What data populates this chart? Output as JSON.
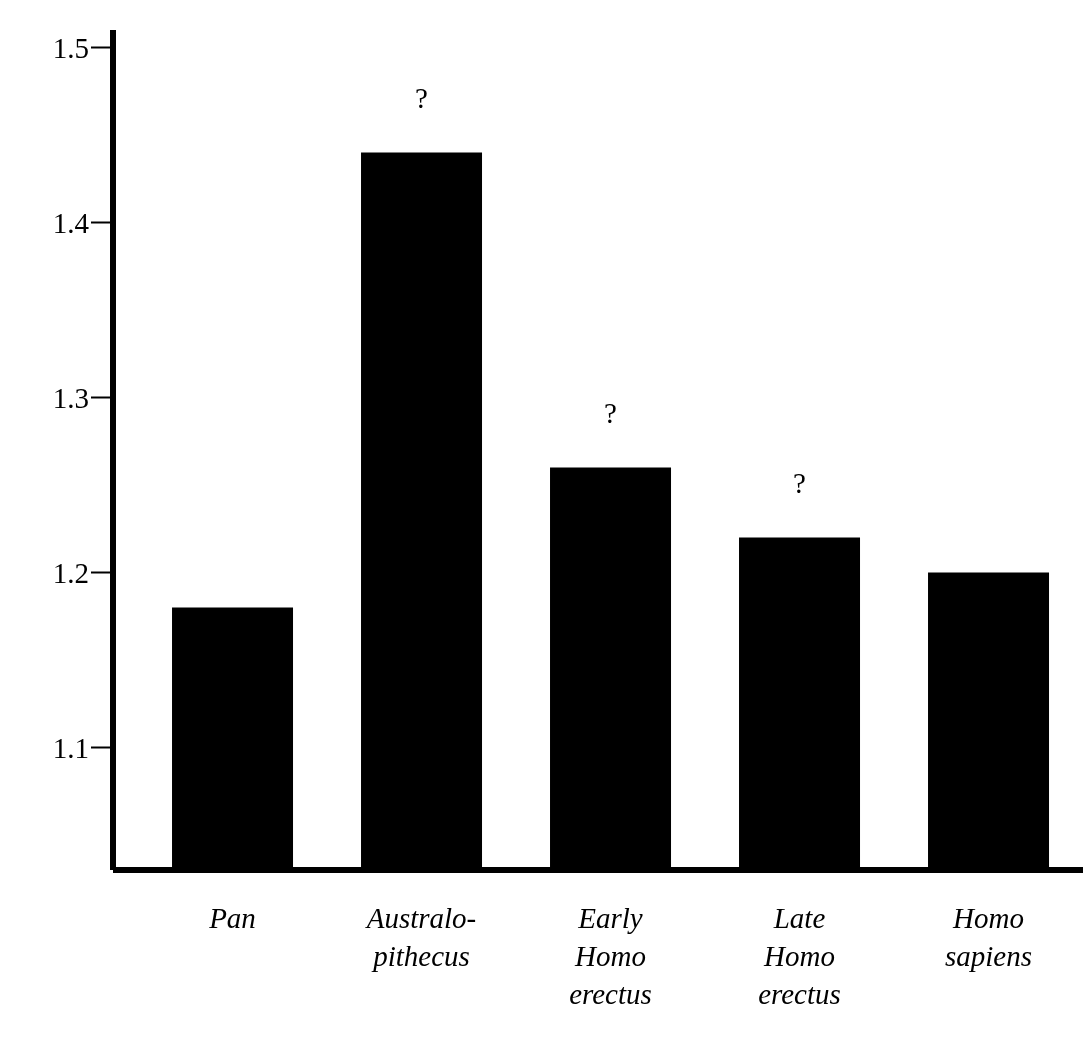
{
  "chart_data": {
    "type": "bar",
    "categories": [
      "Pan",
      "Australo-pithecus",
      "Early Homo erectus",
      "Late Homo erectus",
      "Homo sapiens"
    ],
    "values": [
      1.18,
      1.44,
      1.26,
      1.22,
      1.2
    ],
    "color": "#000000",
    "ylim": [
      1.03,
      1.51
    ],
    "yticks": [
      1.1,
      1.2,
      1.3,
      1.4,
      1.5
    ],
    "annotations": [
      {
        "text": "?",
        "x": "Australo-pithecus",
        "y": 1.44
      },
      {
        "text": "?",
        "x": "Early Homo erectus",
        "y": 1.26
      },
      {
        "text": "?",
        "x": "Late Homo erectus",
        "y": 1.22
      }
    ]
  }
}
